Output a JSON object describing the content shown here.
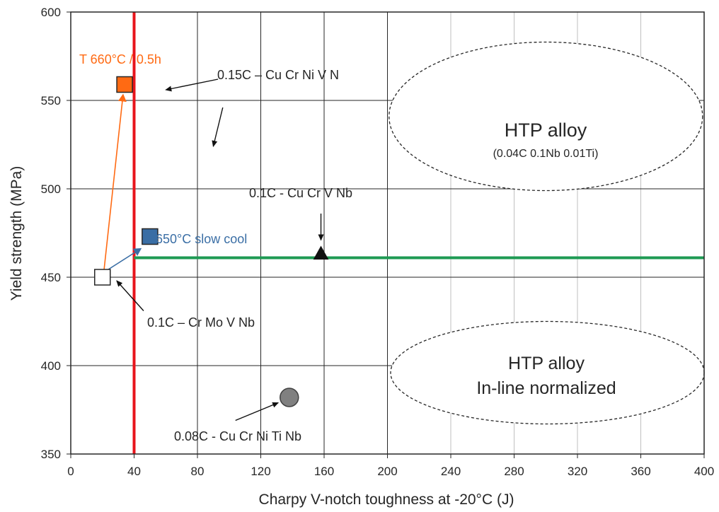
{
  "chart_data": {
    "type": "scatter",
    "xlabel": "Charpy V-notch toughness at -20°C (J)",
    "ylabel": "Yield strength (MPa)",
    "xlim": [
      0,
      400
    ],
    "ylim": [
      350,
      600
    ],
    "xticks": [
      "0",
      "40",
      "80",
      "120",
      "160",
      "200",
      "240",
      "280",
      "320",
      "360",
      "400"
    ],
    "yticks": [
      "350",
      "400",
      "450",
      "500",
      "550",
      "600"
    ],
    "grid": true,
    "points": [
      {
        "label": "0.1C – Cr Mo V Nb",
        "x": 20,
        "y": 450,
        "marker": "square",
        "fill": "#ffffff",
        "stroke": "#262626"
      },
      {
        "label": "T 660°C / 0.5h",
        "x": 34,
        "y": 559,
        "marker": "square",
        "fill": "#ff6a13",
        "stroke": "#262626"
      },
      {
        "label": "650°C slow cool",
        "x": 50,
        "y": 473,
        "marker": "square",
        "fill": "#3a6ea5",
        "stroke": "#262626"
      },
      {
        "label": "0.1C - Cu Cr V Nb",
        "x": 158,
        "y": 463,
        "marker": "triangle",
        "fill": "#111111",
        "stroke": "#111111"
      },
      {
        "label": "0.08C - Cu Cr Ni Ti Nb",
        "x": 138,
        "y": 382,
        "marker": "circle",
        "fill": "#808080",
        "stroke": "#404040"
      }
    ],
    "reference_lines": [
      {
        "orientation": "vertical",
        "x": 40,
        "color": "#e8141b"
      },
      {
        "orientation": "horizontal",
        "y": 461,
        "x_from": 40,
        "x_to": 400,
        "color": "#1e9a53"
      }
    ],
    "regions": [
      {
        "label": "HTP alloy",
        "sublabel": "(0.04C 0.1Nb 0.01Ti)",
        "cx": 300,
        "cy": 541,
        "rx": 99,
        "ry": 42
      },
      {
        "label": "HTP alloy",
        "sublabel": "In-line normalized",
        "cx": 301,
        "cy": 396,
        "rx": 99,
        "ry": 29
      }
    ],
    "annotations": {
      "orange_label": "T 660°C / 0.5h",
      "blue_label": "650°C slow cool",
      "label_015c": "0.15C – Cu Cr Ni V N",
      "label_01c_cucrvnb": "0.1C - Cu Cr V Nb",
      "label_01c_crmovnb": "0.1C – Cr Mo V Nb",
      "label_008c": "0.08C - Cu Cr Ni Ti Nb",
      "region1_title": "HTP alloy",
      "region1_sub": "(0.04C 0.1Nb 0.01Ti)",
      "region2_title": "HTP alloy",
      "region2_sub": "In-line normalized"
    },
    "colors": {
      "orange": "#ff6a13",
      "blue": "#3a6ea5",
      "red_line": "#e8141b",
      "green_line": "#1e9a53",
      "grid": "#262626"
    }
  }
}
